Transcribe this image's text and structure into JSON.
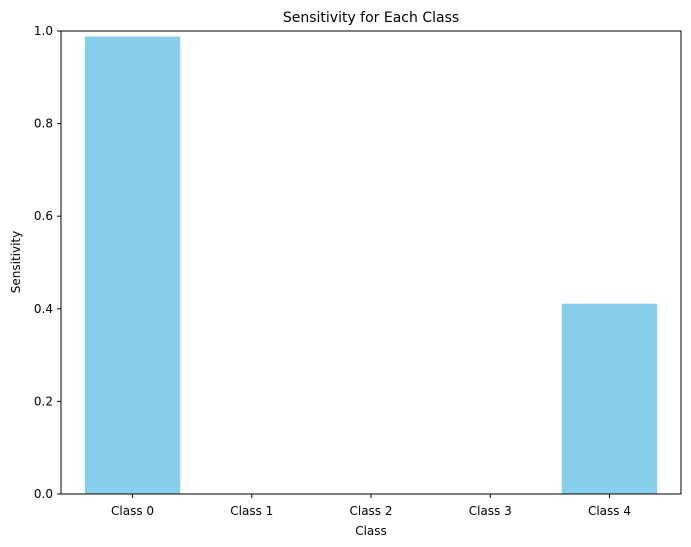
{
  "chart_data": {
    "type": "bar",
    "title": "Sensitivity for Each Class",
    "xlabel": "Class",
    "ylabel": "Sensitivity",
    "categories": [
      "Class 0",
      "Class 1",
      "Class 2",
      "Class 3",
      "Class 4"
    ],
    "values": [
      0.988,
      0.0,
      0.0,
      0.0,
      0.411
    ],
    "ylim": [
      0,
      1.0
    ],
    "yticks": [
      "0.0",
      "0.2",
      "0.4",
      "0.6",
      "0.8",
      "1.0"
    ],
    "grid": false,
    "bar_color": "#87ceeb"
  }
}
